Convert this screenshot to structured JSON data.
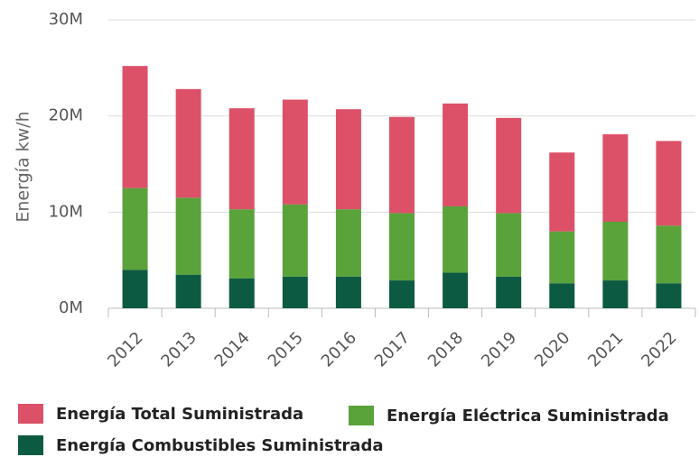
{
  "chart_data": {
    "type": "stacked_bar",
    "y_label": "Energía kw/h",
    "categories": [
      "2012",
      "2013",
      "2014",
      "2015",
      "2016",
      "2017",
      "2018",
      "2019",
      "2020",
      "2021",
      "2022"
    ],
    "series": [
      {
        "name": "Energía Total Suministrada",
        "color": "#dc5068",
        "values": [
          12700000,
          11300000,
          10500000,
          10900000,
          10400000,
          10000000,
          10700000,
          9900000,
          8200000,
          9100000,
          8800000
        ]
      },
      {
        "name": "Energía Eléctrica Suministrada",
        "color": "#5aa23a",
        "values": [
          8500000,
          8000000,
          7200000,
          7500000,
          7000000,
          7000000,
          6900000,
          6600000,
          5400000,
          6100000,
          6000000
        ]
      },
      {
        "name": "Energía Combustibles Suministrada",
        "color": "#0d5a42",
        "values": [
          4000000,
          3500000,
          3100000,
          3300000,
          3300000,
          2900000,
          3700000,
          3300000,
          2600000,
          2900000,
          2600000
        ]
      }
    ],
    "ylim": [
      0,
      30000000
    ],
    "yticks": [
      {
        "value": 0,
        "label": "0M"
      },
      {
        "value": 10000000,
        "label": "10M"
      },
      {
        "value": 20000000,
        "label": "20M"
      },
      {
        "value": 30000000,
        "label": "30M"
      }
    ],
    "grid": true
  }
}
